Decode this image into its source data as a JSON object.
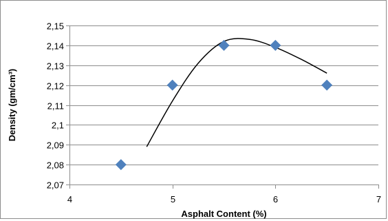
{
  "chart_data": {
    "type": "scatter",
    "title": "",
    "xlabel": "Asphalt Content (%)",
    "ylabel": "Density (gm/cm³)",
    "xlim": [
      4,
      7
    ],
    "ylim": [
      2.07,
      2.15
    ],
    "x_ticks": [
      4,
      5,
      6,
      7
    ],
    "x_tick_labels": [
      "4",
      "5",
      "6",
      "7"
    ],
    "y_ticks": [
      2.07,
      2.08,
      2.09,
      2.1,
      2.11,
      2.12,
      2.13,
      2.14,
      2.15
    ],
    "y_tick_labels": [
      "2,07",
      "2,08",
      "2,09",
      "2,1",
      "2,11",
      "2,12",
      "2,13",
      "2,14",
      "2,15"
    ],
    "grid": "horizontal",
    "series": [
      {
        "marker": "diamond",
        "color": "#4f81bd",
        "x": [
          4.5,
          5.0,
          5.5,
          6.0,
          6.5
        ],
        "y": [
          2.08,
          2.12,
          2.14,
          2.14,
          2.12
        ]
      }
    ],
    "trendline": {
      "type": "polynomial",
      "color": "#000000",
      "x": [
        4.75,
        5.0,
        5.25,
        5.5,
        5.75,
        6.0,
        6.25,
        6.5
      ],
      "y": [
        2.089,
        2.112,
        2.131,
        2.142,
        2.143,
        2.139,
        2.133,
        2.126
      ]
    }
  }
}
